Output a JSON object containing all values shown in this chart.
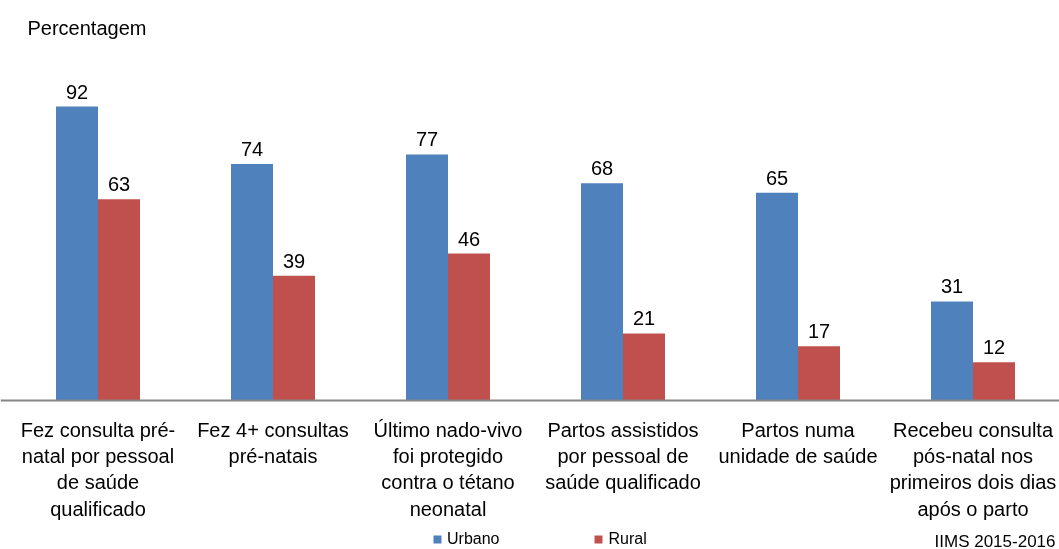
{
  "chart_data": {
    "type": "bar",
    "ylabel": "Percentagem",
    "categories": [
      "Fez consulta pré-natal por pessoal de saúde qualificado",
      "Fez 4+ consultas pré-natais",
      "Último nado-vivo foi protegido contra o tétano neonatal",
      "Partos assistidos por pessoal de saúde qualificado",
      "Partos numa unidade de saúde",
      "Recebeu consulta pós-natal nos primeiros dois dias após o parto"
    ],
    "series": [
      {
        "name": "Urbano",
        "color": "#4f81bd",
        "values": [
          92,
          74,
          77,
          68,
          65,
          31
        ]
      },
      {
        "name": "Rural",
        "color": "#c0504d",
        "values": [
          63,
          39,
          46,
          21,
          17,
          12
        ]
      }
    ],
    "tick_labels": "x",
    "data_labels": true,
    "legend": "bottom",
    "grid": false,
    "annotations": [
      "IIMS 2015-2016"
    ]
  }
}
